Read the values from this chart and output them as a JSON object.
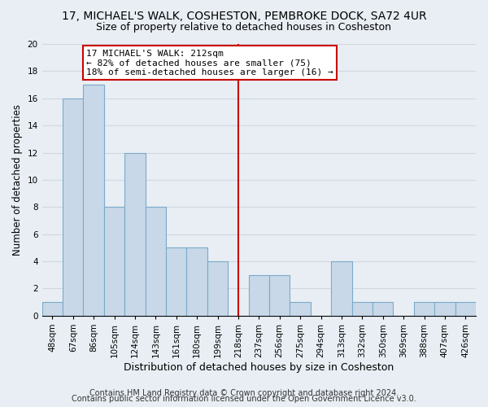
{
  "title1": "17, MICHAEL'S WALK, COSHESTON, PEMBROKE DOCK, SA72 4UR",
  "title2": "Size of property relative to detached houses in Cosheston",
  "xlabel": "Distribution of detached houses by size in Cosheston",
  "ylabel": "Number of detached properties",
  "bin_labels": [
    "48sqm",
    "67sqm",
    "86sqm",
    "105sqm",
    "124sqm",
    "143sqm",
    "161sqm",
    "180sqm",
    "199sqm",
    "218sqm",
    "237sqm",
    "256sqm",
    "275sqm",
    "294sqm",
    "313sqm",
    "332sqm",
    "350sqm",
    "369sqm",
    "388sqm",
    "407sqm",
    "426sqm"
  ],
  "bar_heights": [
    1,
    16,
    17,
    8,
    12,
    8,
    5,
    5,
    4,
    0,
    3,
    3,
    1,
    0,
    4,
    1,
    1,
    0,
    1,
    1,
    1
  ],
  "bar_color": "#c8d8e8",
  "bar_edge_color": "#7aaac8",
  "vline_x_idx": 9,
  "vline_color": "#cc0000",
  "annotation_line1": "17 MICHAEL'S WALK: 212sqm",
  "annotation_line2": "← 82% of detached houses are smaller (75)",
  "annotation_line3": "18% of semi-detached houses are larger (16) →",
  "annotation_box_color": "#ffffff",
  "annotation_box_edge_color": "#cc0000",
  "ylim": [
    0,
    20
  ],
  "yticks": [
    0,
    2,
    4,
    6,
    8,
    10,
    12,
    14,
    16,
    18,
    20
  ],
  "grid_color": "#d0d8e0",
  "footer1": "Contains HM Land Registry data © Crown copyright and database right 2024.",
  "footer2": "Contains public sector information licensed under the Open Government Licence v3.0.",
  "background_color": "#e8eef4",
  "plot_bg_color": "#e8eef4",
  "title1_fontsize": 10,
  "title2_fontsize": 9,
  "xlabel_fontsize": 9,
  "ylabel_fontsize": 8.5,
  "footer_fontsize": 7,
  "tick_fontsize": 7.5,
  "annot_fontsize": 8
}
